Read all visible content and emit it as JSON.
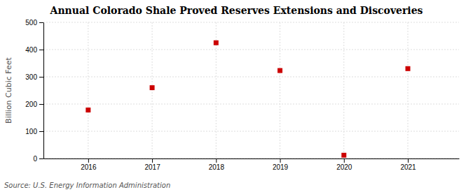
{
  "chart_data": {
    "type": "scatter",
    "title": "Annual Colorado Shale Proved Reserves Extensions and Discoveries",
    "ylabel": "Billion Cubic Feet",
    "x": [
      2016,
      2017,
      2018,
      2019,
      2020,
      2021
    ],
    "values": [
      178,
      260,
      425,
      323,
      12,
      330
    ],
    "color": "#cc0000",
    "marker": "square",
    "xlim": [
      2015.3,
      2021.8
    ],
    "xticks": [
      2016,
      2017,
      2018,
      2019,
      2020,
      2021
    ],
    "ylim": [
      0,
      500
    ],
    "yticks": [
      0,
      100,
      200,
      300,
      400,
      500
    ],
    "grid": true,
    "annotations": [
      "Source: U.S. Energy Information Administration"
    ]
  }
}
